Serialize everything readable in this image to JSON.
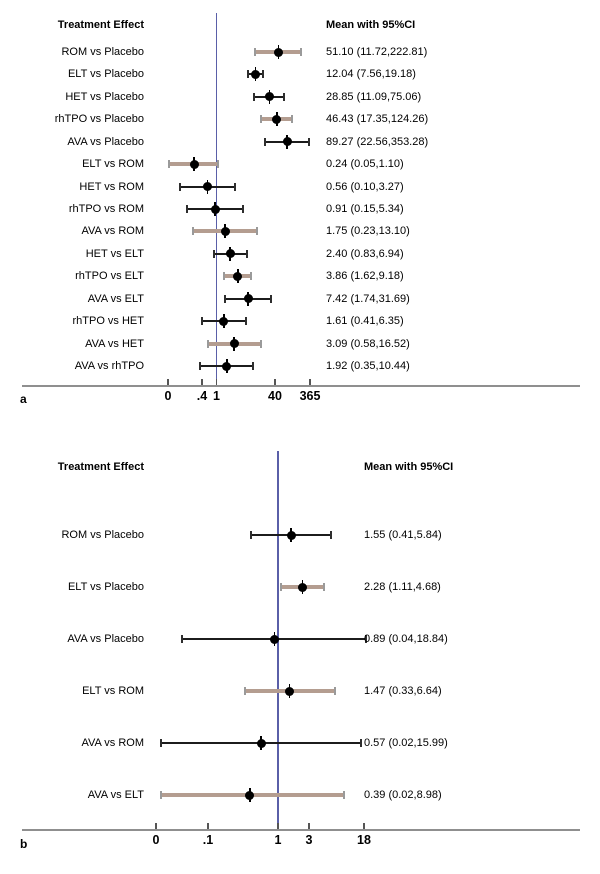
{
  "colors": {
    "reference_line": "#5a5fa8",
    "axis_line": "#8f8f8f",
    "ci_tan": "#b49d90",
    "ci_black": "#1c1c1c",
    "cap_on_tan": "#9a9a9a",
    "cap_on_black": "#2e2e2e",
    "marker": "#000000",
    "text": "#000000"
  },
  "chart_data": [
    {
      "type": "forest",
      "panel_label": "a",
      "col_left_header": "Treatment Effect",
      "col_right_header": "Mean with 95%CI",
      "x_scale": "log10",
      "ref_line_value": 1,
      "x_ticks": [
        "0",
        ".4",
        "1",
        "40",
        "365"
      ],
      "rows": [
        {
          "label": "ROM vs Placebo",
          "mean": 51.1,
          "ci_low": 11.72,
          "ci_high": 222.81,
          "text": "51.10 (11.72,222.81)",
          "style": "tan"
        },
        {
          "label": "ELT vs Placebo",
          "mean": 12.04,
          "ci_low": 7.56,
          "ci_high": 19.18,
          "text": "12.04 (7.56,19.18)",
          "style": "black"
        },
        {
          "label": "HET vs Placebo",
          "mean": 28.85,
          "ci_low": 11.09,
          "ci_high": 75.06,
          "text": "28.85 (11.09,75.06)",
          "style": "black"
        },
        {
          "label": "rhTPO vs Placebo",
          "mean": 46.43,
          "ci_low": 17.35,
          "ci_high": 124.26,
          "text": "46.43 (17.35,124.26)",
          "style": "tan"
        },
        {
          "label": "AVA vs Placebo",
          "mean": 89.27,
          "ci_low": 22.56,
          "ci_high": 353.28,
          "text": "89.27 (22.56,353.28)",
          "style": "black"
        },
        {
          "label": "ELT vs ROM",
          "mean": 0.24,
          "ci_low": 0.05,
          "ci_high": 1.1,
          "text": "0.24 (0.05,1.10)",
          "style": "tan"
        },
        {
          "label": "HET vs ROM",
          "mean": 0.56,
          "ci_low": 0.1,
          "ci_high": 3.27,
          "text": "0.56 (0.10,3.27)",
          "style": "black"
        },
        {
          "label": "rhTPO vs ROM",
          "mean": 0.91,
          "ci_low": 0.15,
          "ci_high": 5.34,
          "text": "0.91 (0.15,5.34)",
          "style": "black"
        },
        {
          "label": "AVA vs ROM",
          "mean": 1.75,
          "ci_low": 0.23,
          "ci_high": 13.1,
          "text": "1.75 (0.23,13.10)",
          "style": "tan"
        },
        {
          "label": "HET vs ELT",
          "mean": 2.4,
          "ci_low": 0.83,
          "ci_high": 6.94,
          "text": "2.40 (0.83,6.94)",
          "style": "black"
        },
        {
          "label": "rhTPO vs ELT",
          "mean": 3.86,
          "ci_low": 1.62,
          "ci_high": 9.18,
          "text": "3.86 (1.62,9.18)",
          "style": "tan"
        },
        {
          "label": "AVA vs ELT",
          "mean": 7.42,
          "ci_low": 1.74,
          "ci_high": 31.69,
          "text": "7.42 (1.74,31.69)",
          "style": "black"
        },
        {
          "label": "rhTPO vs HET",
          "mean": 1.61,
          "ci_low": 0.41,
          "ci_high": 6.35,
          "text": "1.61 (0.41,6.35)",
          "style": "black"
        },
        {
          "label": "AVA vs HET",
          "mean": 3.09,
          "ci_low": 0.58,
          "ci_high": 16.52,
          "text": "3.09 (0.58,16.52)",
          "style": "tan"
        },
        {
          "label": "AVA vs rhTPO",
          "mean": 1.92,
          "ci_low": 0.35,
          "ci_high": 10.44,
          "text": "1.92 (0.35,10.44)",
          "style": "black"
        }
      ]
    },
    {
      "type": "forest",
      "panel_label": "b",
      "col_left_header": "Treatment Effect",
      "col_right_header": "Mean with 95%CI",
      "x_scale": "log10",
      "ref_line_value": 1,
      "x_ticks": [
        "0",
        ".1",
        "1",
        "3",
        "18"
      ],
      "rows": [
        {
          "label": "ROM vs Placebo",
          "mean": 1.55,
          "ci_low": 0.41,
          "ci_high": 5.84,
          "text": "1.55 (0.41,5.84)",
          "style": "black"
        },
        {
          "label": "ELT vs Placebo",
          "mean": 2.28,
          "ci_low": 1.11,
          "ci_high": 4.68,
          "text": "2.28 (1.11,4.68)",
          "style": "tan"
        },
        {
          "label": "AVA vs Placebo",
          "mean": 0.89,
          "ci_low": 0.04,
          "ci_high": 18.84,
          "text": "0.89 (0.04,18.84)",
          "style": "black"
        },
        {
          "label": "ELT vs ROM",
          "mean": 1.47,
          "ci_low": 0.33,
          "ci_high": 6.64,
          "text": "1.47 (0.33,6.64)",
          "style": "tan"
        },
        {
          "label": "AVA vs ROM",
          "mean": 0.57,
          "ci_low": 0.02,
          "ci_high": 15.99,
          "text": "0.57 (0.02,15.99)",
          "style": "black"
        },
        {
          "label": "AVA vs ELT",
          "mean": 0.39,
          "ci_low": 0.02,
          "ci_high": 8.98,
          "text": "0.39 (0.02,8.98)",
          "style": "tan"
        }
      ]
    }
  ]
}
